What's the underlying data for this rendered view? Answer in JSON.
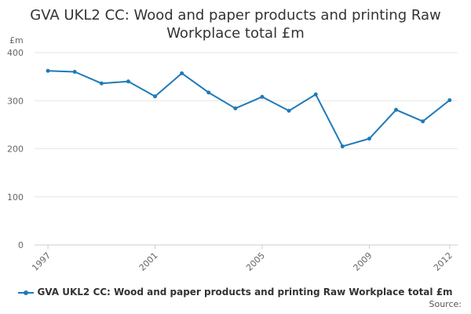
{
  "chart_data": {
    "type": "line",
    "title_lines": [
      "GVA UKL2 CC: Wood and paper products and printing Raw",
      "Workplace total £m"
    ],
    "ylabel": "£m",
    "xlabel": "",
    "ylim": [
      0,
      400
    ],
    "yticks": [
      0,
      100,
      200,
      300,
      400
    ],
    "xticks": [
      1997,
      2001,
      2005,
      2009,
      2012
    ],
    "grid": true,
    "legend_position": "bottom",
    "colors": {
      "series": "#1f7ab8",
      "grid": "#e6e6e6"
    },
    "series": [
      {
        "name": "GVA UKL2 CC: Wood and paper products and printing Raw Workplace total £m",
        "x": [
          1997,
          1998,
          1999,
          2000,
          2001,
          2002,
          2003,
          2004,
          2005,
          2006,
          2007,
          2008,
          2009,
          2010,
          2011,
          2012
        ],
        "values": [
          362,
          360,
          336,
          340,
          309,
          357,
          317,
          284,
          308,
          279,
          313,
          205,
          221,
          281,
          257,
          301
        ]
      }
    ]
  },
  "source_label": "Source:"
}
